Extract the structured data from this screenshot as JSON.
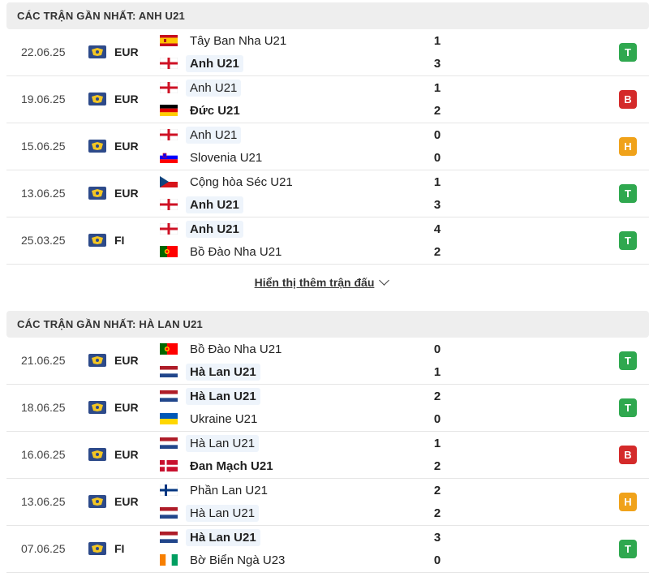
{
  "sections": [
    {
      "title": "CÁC TRẬN GẦN NHẤT: ANH U21",
      "show_more": "Hiển thị thêm trận đấu",
      "matches": [
        {
          "date": "22.06.25",
          "league": "EUR",
          "home": {
            "name": "Tây Ban Nha U21",
            "flag": "spain-flag",
            "score": "1",
            "bold": false,
            "hl": false
          },
          "away": {
            "name": "Anh U21",
            "flag": "england-flag",
            "score": "3",
            "bold": true,
            "hl": true
          },
          "result": "T",
          "result_color": "#2fa84f"
        },
        {
          "date": "19.06.25",
          "league": "EUR",
          "home": {
            "name": "Anh U21",
            "flag": "england-flag",
            "score": "1",
            "bold": false,
            "hl": true
          },
          "away": {
            "name": "Đức U21",
            "flag": "germany-flag",
            "score": "2",
            "bold": true,
            "hl": false
          },
          "result": "B",
          "result_color": "#d42a2a"
        },
        {
          "date": "15.06.25",
          "league": "EUR",
          "home": {
            "name": "Anh U21",
            "flag": "england-flag",
            "score": "0",
            "bold": false,
            "hl": true
          },
          "away": {
            "name": "Slovenia U21",
            "flag": "slovenia-flag",
            "score": "0",
            "bold": false,
            "hl": false
          },
          "result": "H",
          "result_color": "#f0a21a"
        },
        {
          "date": "13.06.25",
          "league": "EUR",
          "home": {
            "name": "Cộng hòa Séc U21",
            "flag": "czech-flag",
            "score": "1",
            "bold": false,
            "hl": false
          },
          "away": {
            "name": "Anh U21",
            "flag": "england-flag",
            "score": "3",
            "bold": true,
            "hl": true
          },
          "result": "T",
          "result_color": "#2fa84f"
        },
        {
          "date": "25.03.25",
          "league": "FI",
          "home": {
            "name": "Anh U21",
            "flag": "england-flag",
            "score": "4",
            "bold": true,
            "hl": true
          },
          "away": {
            "name": "Bồ Đào Nha U21",
            "flag": "portugal-flag",
            "score": "2",
            "bold": false,
            "hl": false
          },
          "result": "T",
          "result_color": "#2fa84f"
        }
      ]
    },
    {
      "title": "CÁC TRẬN GẦN NHẤT: HÀ LAN U21",
      "matches": [
        {
          "date": "21.06.25",
          "league": "EUR",
          "home": {
            "name": "Bồ Đào Nha U21",
            "flag": "portugal-flag",
            "score": "0",
            "bold": false,
            "hl": false
          },
          "away": {
            "name": "Hà Lan U21",
            "flag": "netherlands-flag",
            "score": "1",
            "bold": true,
            "hl": true
          },
          "result": "T",
          "result_color": "#2fa84f"
        },
        {
          "date": "18.06.25",
          "league": "EUR",
          "home": {
            "name": "Hà Lan U21",
            "flag": "netherlands-flag",
            "score": "2",
            "bold": true,
            "hl": true
          },
          "away": {
            "name": "Ukraine U21",
            "flag": "ukraine-flag",
            "score": "0",
            "bold": false,
            "hl": false
          },
          "result": "T",
          "result_color": "#2fa84f"
        },
        {
          "date": "16.06.25",
          "league": "EUR",
          "home": {
            "name": "Hà Lan U21",
            "flag": "netherlands-flag",
            "score": "1",
            "bold": false,
            "hl": true
          },
          "away": {
            "name": "Đan Mạch U21",
            "flag": "denmark-flag",
            "score": "2",
            "bold": true,
            "hl": false
          },
          "result": "B",
          "result_color": "#d42a2a"
        },
        {
          "date": "13.06.25",
          "league": "EUR",
          "home": {
            "name": "Phần Lan U21",
            "flag": "finland-flag",
            "score": "2",
            "bold": false,
            "hl": false
          },
          "away": {
            "name": "Hà Lan U21",
            "flag": "netherlands-flag",
            "score": "2",
            "bold": false,
            "hl": true
          },
          "result": "H",
          "result_color": "#f0a21a"
        },
        {
          "date": "07.06.25",
          "league": "FI",
          "home": {
            "name": "Hà Lan U21",
            "flag": "netherlands-flag",
            "score": "3",
            "bold": true,
            "hl": true
          },
          "away": {
            "name": "Bờ Biển Ngà U23",
            "flag": "ivory-coast-flag",
            "score": "0",
            "bold": false,
            "hl": false
          },
          "result": "T",
          "result_color": "#2fa84f"
        }
      ]
    }
  ],
  "league_icon": "league-trophy-icon"
}
